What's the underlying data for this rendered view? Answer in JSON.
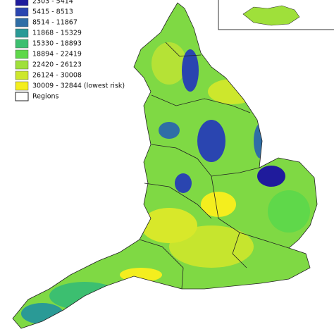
{
  "legend": {
    "items": [
      {
        "label": "2303 - 5414",
        "color": "#1f1b9c"
      },
      {
        "label": "5415 - 8513",
        "color": "#2a45b0"
      },
      {
        "label": "8514 - 11867",
        "color": "#2f6ea6"
      },
      {
        "label": "11868 - 15329",
        "color": "#2a9a96"
      },
      {
        "label": "15330 - 18893",
        "color": "#3cbf70"
      },
      {
        "label": "18894 - 22419",
        "color": "#5fd84a"
      },
      {
        "label": "22420 - 26123",
        "color": "#9fe03a"
      },
      {
        "label": "26124 - 30008",
        "color": "#cde72c"
      },
      {
        "label": "30009 - 32844 (lowest risk)",
        "color": "#f4ee1e"
      }
    ],
    "regions_label": "Regions"
  }
}
